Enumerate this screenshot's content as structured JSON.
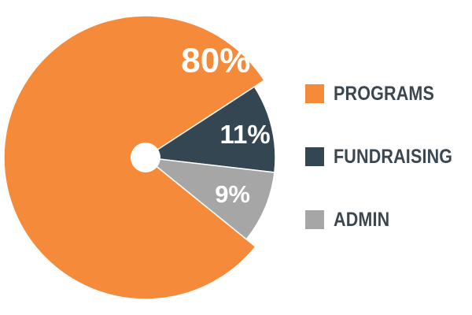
{
  "chart_data": {
    "type": "pie",
    "categories": [
      "PROGRAMS",
      "FUNDRAISING",
      "ADMIN"
    ],
    "values": [
      80,
      11,
      9
    ],
    "value_labels": [
      "80%",
      "11%",
      "9%"
    ],
    "colors": [
      "#f58a3a",
      "#344652",
      "#a6a6a6"
    ],
    "center_hole_color": "#ffffff",
    "legend_position": "right",
    "exploded_slices": [
      "FUNDRAISING",
      "ADMIN"
    ]
  }
}
